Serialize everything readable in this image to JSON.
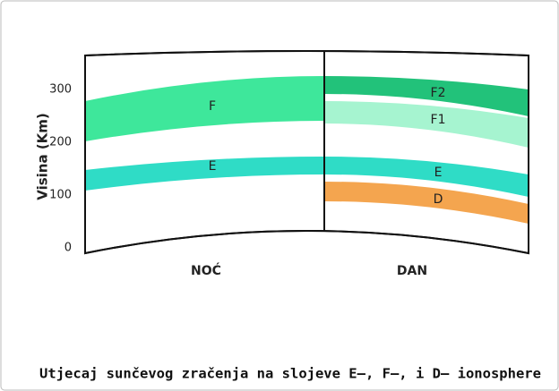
{
  "axis": {
    "label": "Visina (Km)",
    "ticks": [
      0,
      100,
      200,
      300
    ]
  },
  "night": {
    "title": "NOĆ",
    "layers": [
      "F",
      "E"
    ]
  },
  "day": {
    "title": "DAN",
    "layers": [
      "F2",
      "F1",
      "E",
      "D"
    ]
  },
  "caption": "Utjecaj sunčevog zračenja na slojeve E–, F–, i D– ionosphere"
}
